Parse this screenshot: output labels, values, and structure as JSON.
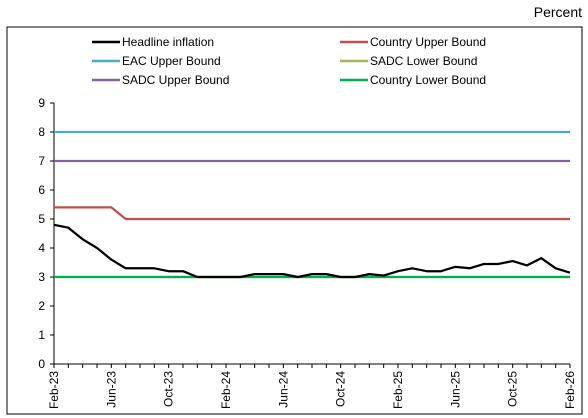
{
  "chart_data": {
    "type": "line",
    "unit_label": "Percent",
    "ylim": [
      0,
      9
    ],
    "y_ticks": [
      "0",
      "1",
      "2",
      "3",
      "4",
      "5",
      "6",
      "7",
      "8",
      "9"
    ],
    "x_tick_labels": [
      "Feb-23",
      "Jun-23",
      "Oct-23",
      "Feb-24",
      "Jun-24",
      "Oct-24",
      "Feb-25",
      "Jun-25",
      "Oct-25",
      "Feb-26"
    ],
    "x_count": 37,
    "grid": false,
    "legend_position": "top",
    "series": [
      {
        "name": "Headline inflation",
        "color": "#000000",
        "values": [
          4.8,
          4.7,
          4.3,
          4.0,
          3.6,
          3.3,
          3.3,
          3.3,
          3.2,
          3.2,
          3.0,
          3.0,
          3.0,
          3.0,
          3.1,
          3.1,
          3.1,
          3.0,
          3.1,
          3.1,
          3.0,
          3.0,
          3.1,
          3.05,
          3.2,
          3.3,
          3.2,
          3.2,
          3.35,
          3.3,
          3.45,
          3.45,
          3.55,
          3.4,
          3.65,
          3.3,
          3.15
        ]
      },
      {
        "name": "Country Upper Bound",
        "color": "#c0504d",
        "values": [
          5.4,
          5.4,
          5.4,
          5.4,
          5.4,
          5.0,
          5.0,
          5.0,
          5.0,
          5.0,
          5.0,
          5.0,
          5.0,
          5.0,
          5.0,
          5.0,
          5.0,
          5.0,
          5.0,
          5.0,
          5.0,
          5.0,
          5.0,
          5.0,
          5.0,
          5.0,
          5.0,
          5.0,
          5.0,
          5.0,
          5.0,
          5.0,
          5.0,
          5.0,
          5.0,
          5.0,
          5.0
        ]
      },
      {
        "name": "EAC Upper Bound",
        "color": "#4bacc6",
        "values": [
          8,
          8,
          8,
          8,
          8,
          8,
          8,
          8,
          8,
          8,
          8,
          8,
          8,
          8,
          8,
          8,
          8,
          8,
          8,
          8,
          8,
          8,
          8,
          8,
          8,
          8,
          8,
          8,
          8,
          8,
          8,
          8,
          8,
          8,
          8,
          8,
          8
        ]
      },
      {
        "name": "SADC Lower Bound",
        "color": "#9bbb59",
        "values": [
          3,
          3,
          3,
          3,
          3,
          3,
          3,
          3,
          3,
          3,
          3,
          3,
          3,
          3,
          3,
          3,
          3,
          3,
          3,
          3,
          3,
          3,
          3,
          3,
          3,
          3,
          3,
          3,
          3,
          3,
          3,
          3,
          3,
          3,
          3,
          3,
          3
        ]
      },
      {
        "name": "SADC Upper Bound",
        "color": "#8064a2",
        "values": [
          7,
          7,
          7,
          7,
          7,
          7,
          7,
          7,
          7,
          7,
          7,
          7,
          7,
          7,
          7,
          7,
          7,
          7,
          7,
          7,
          7,
          7,
          7,
          7,
          7,
          7,
          7,
          7,
          7,
          7,
          7,
          7,
          7,
          7,
          7,
          7,
          7
        ]
      },
      {
        "name": "Country Lower Bound",
        "color": "#00b050",
        "values": [
          3,
          3,
          3,
          3,
          3,
          3,
          3,
          3,
          3,
          3,
          3,
          3,
          3,
          3,
          3,
          3,
          3,
          3,
          3,
          3,
          3,
          3,
          3,
          3,
          3,
          3,
          3,
          3,
          3,
          3,
          3,
          3,
          3,
          3,
          3,
          3,
          3
        ]
      }
    ]
  }
}
